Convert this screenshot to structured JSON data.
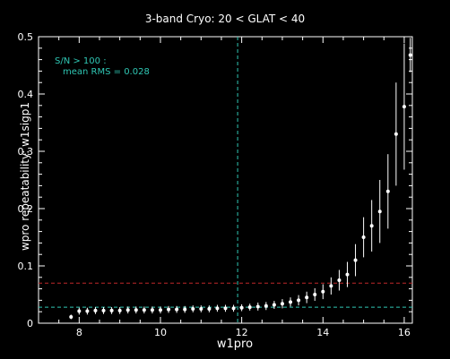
{
  "chart_data": {
    "type": "scatter",
    "title": "3-band Cryo:  20 < GLAT < 40",
    "xlabel": "w1pro",
    "ylabel": "wpro repeatability: w1sigp1",
    "xlim": [
      7,
      16.2
    ],
    "ylim": [
      0,
      0.5
    ],
    "xticks": [
      8,
      10,
      12,
      14,
      16
    ],
    "yticks": [
      0,
      0.1,
      0.2,
      0.3,
      0.4,
      0.5
    ],
    "xtick_labels": [
      "8",
      "10",
      "12",
      "14",
      "16"
    ],
    "ytick_labels": [
      "0",
      "0.1",
      "0.2",
      "0.3",
      "0.4",
      "0.5"
    ],
    "annotation": {
      "line1": "S/N > 100 :",
      "line2": "mean RMS =  0.028"
    },
    "reference_lines": {
      "vertical_x": 11.9,
      "hline_red_y": 0.07,
      "hline_cyan_y": 0.028
    },
    "colors": {
      "background": "#000000",
      "foreground": "#ffffff",
      "cyan": "#2fc7b4",
      "red": "#c0282a"
    },
    "series": [
      {
        "x": [
          7.8,
          8.0,
          8.2,
          8.4,
          8.6,
          8.8,
          9.0,
          9.2,
          9.4,
          9.6,
          9.8,
          10.0,
          10.2,
          10.4,
          10.6,
          10.8,
          11.0,
          11.2,
          11.4,
          11.6,
          11.8,
          12.0,
          12.2,
          12.4,
          12.6,
          12.8,
          13.0,
          13.2,
          13.4,
          13.6,
          13.8,
          14.0,
          14.2,
          14.4,
          14.6,
          14.8,
          15.0,
          15.2,
          15.4,
          15.6,
          15.8,
          16.0,
          16.15
        ],
        "y": [
          0.011,
          0.021,
          0.021,
          0.022,
          0.022,
          0.022,
          0.022,
          0.023,
          0.023,
          0.023,
          0.023,
          0.023,
          0.024,
          0.024,
          0.024,
          0.025,
          0.025,
          0.025,
          0.026,
          0.026,
          0.026,
          0.027,
          0.028,
          0.029,
          0.03,
          0.032,
          0.034,
          0.037,
          0.04,
          0.045,
          0.05,
          0.055,
          0.065,
          0.075,
          0.085,
          0.11,
          0.15,
          0.17,
          0.195,
          0.23,
          0.33,
          0.378,
          0.468
        ],
        "err": [
          0.004,
          0.006,
          0.006,
          0.006,
          0.006,
          0.006,
          0.006,
          0.006,
          0.006,
          0.006,
          0.006,
          0.006,
          0.006,
          0.006,
          0.006,
          0.006,
          0.006,
          0.006,
          0.006,
          0.006,
          0.006,
          0.006,
          0.006,
          0.007,
          0.007,
          0.007,
          0.008,
          0.008,
          0.009,
          0.01,
          0.011,
          0.013,
          0.015,
          0.018,
          0.022,
          0.028,
          0.035,
          0.045,
          0.055,
          0.065,
          0.09,
          0.11,
          0.03
        ]
      }
    ]
  }
}
